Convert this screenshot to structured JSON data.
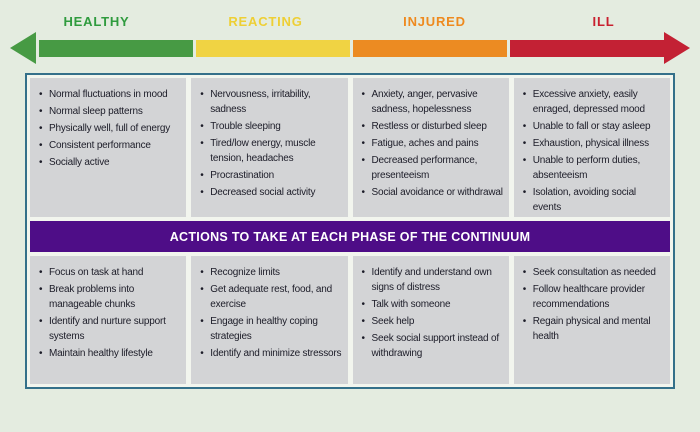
{
  "page": {
    "background_color": "#e4ece0",
    "panel_color": "#d3d4d6",
    "border_color": "#34708a",
    "text_color": "#1c1c28"
  },
  "continuum": {
    "phases": [
      {
        "label": "HEALTHY",
        "color": "#479a44",
        "label_color": "#2f9b3e"
      },
      {
        "label": "REACTING",
        "color": "#f0d343",
        "label_color": "#eecf35"
      },
      {
        "label": "INJURED",
        "color": "#ec8b22",
        "label_color": "#ee8a1f"
      },
      {
        "label": "ILL",
        "color": "#c32134",
        "label_color": "#c9202f"
      }
    ]
  },
  "signs": {
    "columns": [
      [
        "Normal fluctuations in mood",
        "Normal sleep patterns",
        "Physically well, full of energy",
        "Consistent performance",
        "Socially active"
      ],
      [
        "Nervousness, irritability, sadness",
        "Trouble sleeping",
        "Tired/low energy, muscle tension, headaches",
        "Procrastination",
        "Decreased social activity"
      ],
      [
        "Anxiety, anger, pervasive sadness, hopelessness",
        "Restless or disturbed sleep",
        "Fatigue, aches and pains",
        "Decreased performance, presenteeism",
        "Social avoidance or withdrawal"
      ],
      [
        "Excessive anxiety, easily enraged, depressed mood",
        "Unable to fall or stay asleep",
        "Exhaustion, physical illness",
        "Unable to perform duties, absenteeism",
        "Isolation, avoiding social events"
      ]
    ]
  },
  "banner": {
    "label": "ACTIONS TO TAKE AT EACH PHASE OF THE CONTINUUM",
    "background": "#4e0d87"
  },
  "actions": {
    "columns": [
      [
        "Focus on task at hand",
        "Break problems into manageable chunks",
        "Identify and nurture support systems",
        "Maintain healthy lifestyle"
      ],
      [
        "Recognize limits",
        "Get adequate rest, food, and exercise",
        "Engage in healthy coping strategies",
        "Identify and minimize stressors"
      ],
      [
        "Identify and understand own signs of distress",
        "Talk with someone",
        "Seek help",
        "Seek social support instead of withdrawing"
      ],
      [
        "Seek consultation as needed",
        "Follow healthcare provider recommendations",
        "Regain physical and mental health"
      ]
    ]
  }
}
